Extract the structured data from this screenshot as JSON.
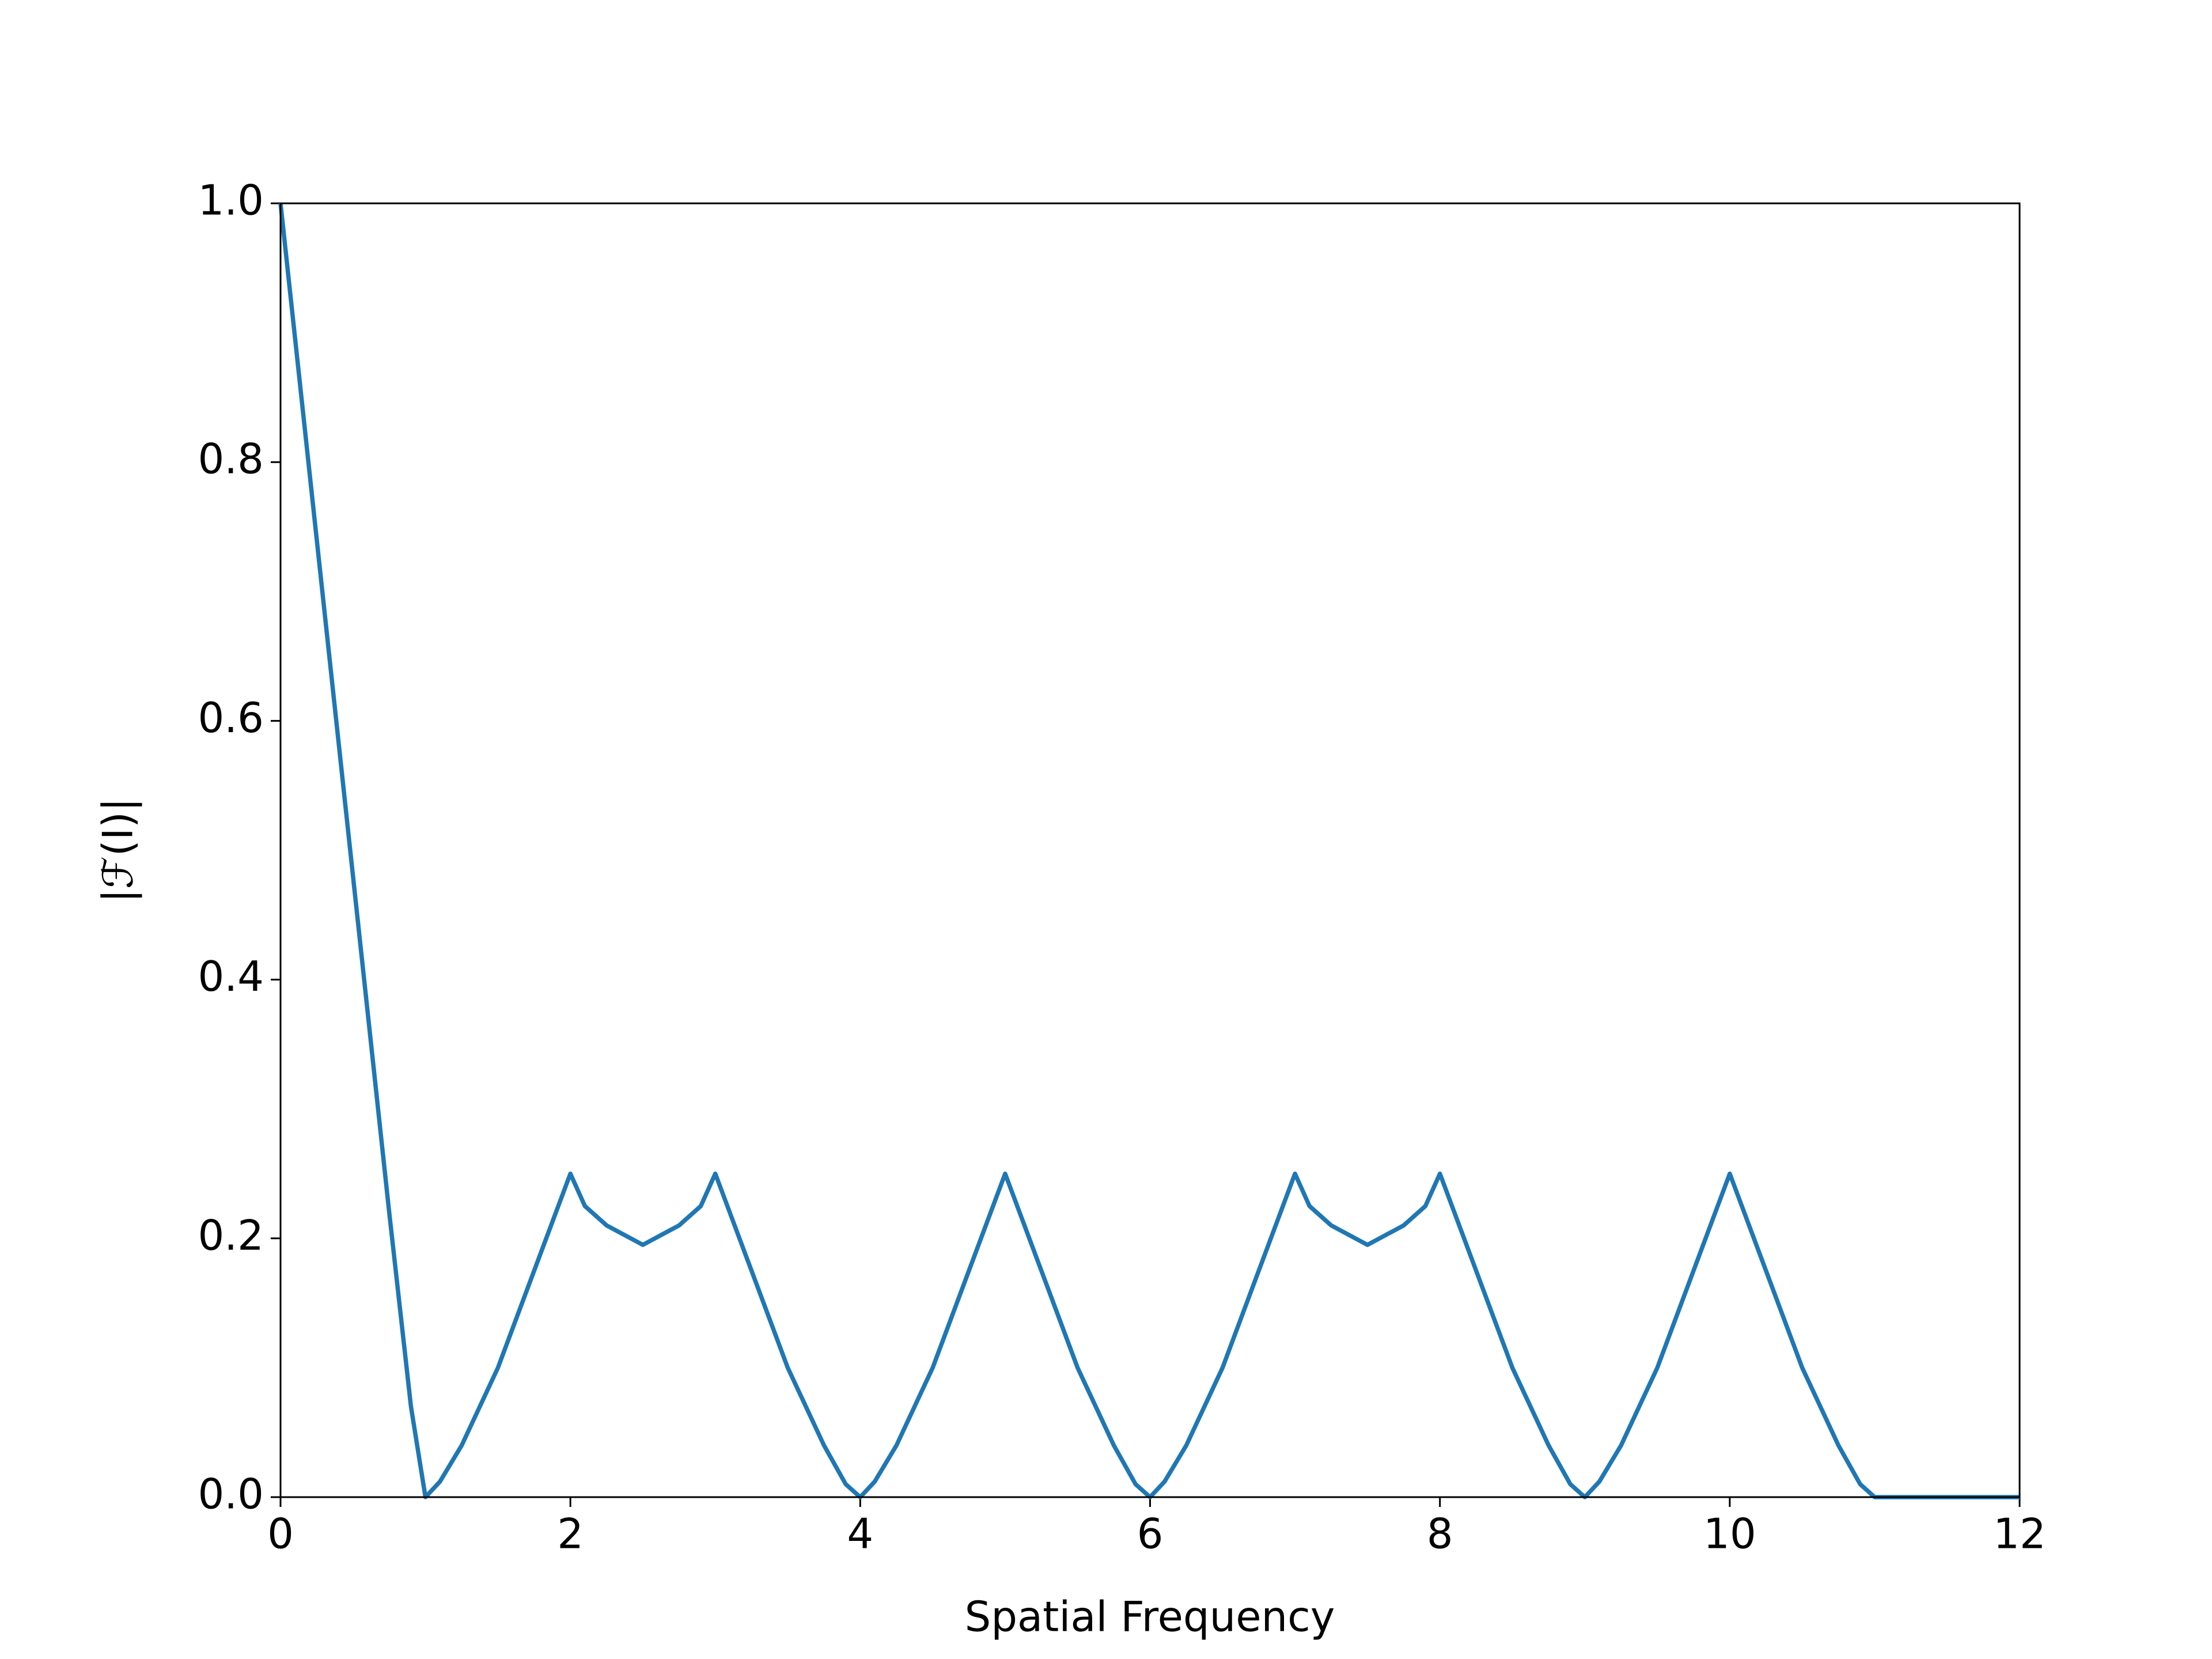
{
  "chart_data": {
    "type": "line",
    "x_label": "Spatial Frequency",
    "y_label": "|ℱ(I)|",
    "x": [
      0,
      0.25,
      0.5,
      0.75,
      0.9,
      1,
      1.1,
      1.25,
      1.5,
      1.75,
      2,
      2.1,
      2.25,
      2.5,
      2.75,
      2.9,
      3,
      3.25,
      3.5,
      3.75,
      3.9,
      4,
      4.1,
      4.25,
      4.5,
      4.75,
      5,
      5.25,
      5.5,
      5.75,
      5.9,
      6,
      6.1,
      6.25,
      6.5,
      6.75,
      7,
      7.1,
      7.25,
      7.5,
      7.75,
      7.9,
      8,
      8.25,
      8.5,
      8.75,
      8.9,
      9,
      9.1,
      9.25,
      9.5,
      9.75,
      10,
      10.25,
      10.5,
      10.75,
      10.9,
      11,
      12
    ],
    "series": [
      {
        "color": "#1f77b4",
        "values": [
          1.0,
          0.74,
          0.48,
          0.22,
          0.07,
          0,
          0.012,
          0.04,
          0.1,
          0.175,
          0.25,
          0.225,
          0.21,
          0.195,
          0.21,
          0.225,
          0.25,
          0.175,
          0.1,
          0.04,
          0.01,
          0,
          0.012,
          0.04,
          0.1,
          0.175,
          0.25,
          0.175,
          0.1,
          0.04,
          0.01,
          0,
          0.012,
          0.04,
          0.1,
          0.175,
          0.25,
          0.225,
          0.21,
          0.195,
          0.21,
          0.225,
          0.25,
          0.175,
          0.1,
          0.04,
          0.01,
          0,
          0.012,
          0.04,
          0.1,
          0.175,
          0.25,
          0.175,
          0.1,
          0.04,
          0.01,
          0,
          0
        ]
      }
    ],
    "xlim": [
      0,
      12
    ],
    "xticks": [
      0,
      2,
      4,
      6,
      8,
      10,
      12
    ],
    "ylim": [
      0,
      1
    ],
    "yticks": [
      {
        "value": 0,
        "label": "0.0"
      },
      0.2,
      0.4,
      0.6,
      0.8,
      {
        "value": 1,
        "label": "1.0"
      }
    ],
    "grid": false
  }
}
